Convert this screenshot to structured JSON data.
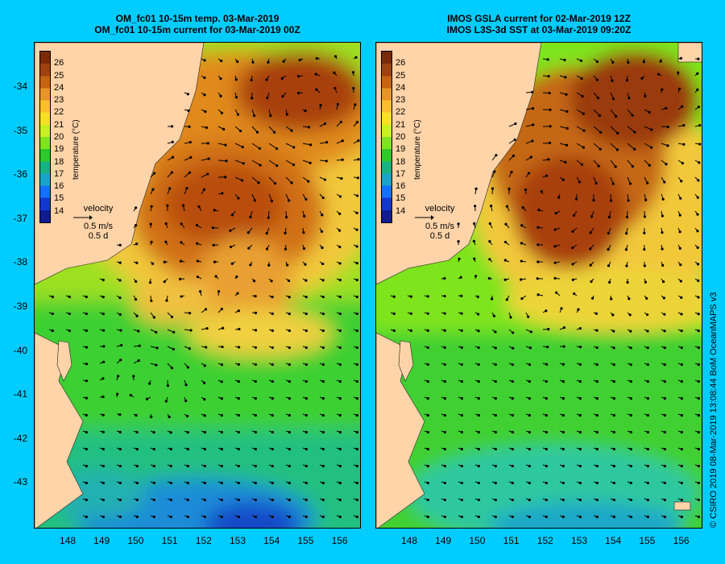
{
  "left_panel": {
    "title_line1": "OM_fc01 10-15m temp. 03-Mar-2019",
    "title_line2": "OM_fc01 10-15m current for 03-Mar-2019 00Z",
    "legend": {
      "colorbar_title": "temperature (°C)",
      "velocity_label": "velocity",
      "velocity_scale": "0.5 m/s",
      "velocity_time": "0.5 d"
    }
  },
  "right_panel": {
    "title_line1": "IMOS GSLA current for 02-Mar-2019 12Z",
    "title_line2": "IMOS L3S-3d SST at 03-Mar-2019 09:20Z",
    "legend": {
      "colorbar_title": "temperature (°C)",
      "velocity_label": "velocity",
      "velocity_scale": "0.5 m/s",
      "velocity_time": "0.5 d"
    }
  },
  "colorbar": {
    "ticks": [
      "26",
      "25",
      "24",
      "23",
      "22",
      "21",
      "20",
      "19",
      "18",
      "17",
      "16",
      "15",
      "14"
    ],
    "colors": [
      "#7a2a08",
      "#a0420e",
      "#c56412",
      "#e89426",
      "#ffbe2a",
      "#f8e024",
      "#c8f022",
      "#7ee41c",
      "#2ec82a",
      "#16b482",
      "#18a4c8",
      "#1470ff",
      "#1238d0",
      "#101c90"
    ]
  },
  "lat_labels": [
    "-34",
    "-35",
    "-36",
    "-37",
    "-38",
    "-39",
    "-40",
    "-41",
    "-42",
    "-43"
  ],
  "lon_labels": [
    "148",
    "149",
    "150",
    "151",
    "152",
    "153",
    "154",
    "155",
    "156"
  ],
  "copyright": "© CSIRO 2019   08-Mar-2019 13:08:44 BoM OceanMAPS v3",
  "colors": {
    "background": "#00ccff",
    "land": "#ffd4a8",
    "warm_core": "#b84e10",
    "warm": "#e08a1c",
    "mid": "#f2c83a",
    "cool": "#9ee020",
    "cold": "#20c848",
    "coldest": "#1c8cd8"
  }
}
